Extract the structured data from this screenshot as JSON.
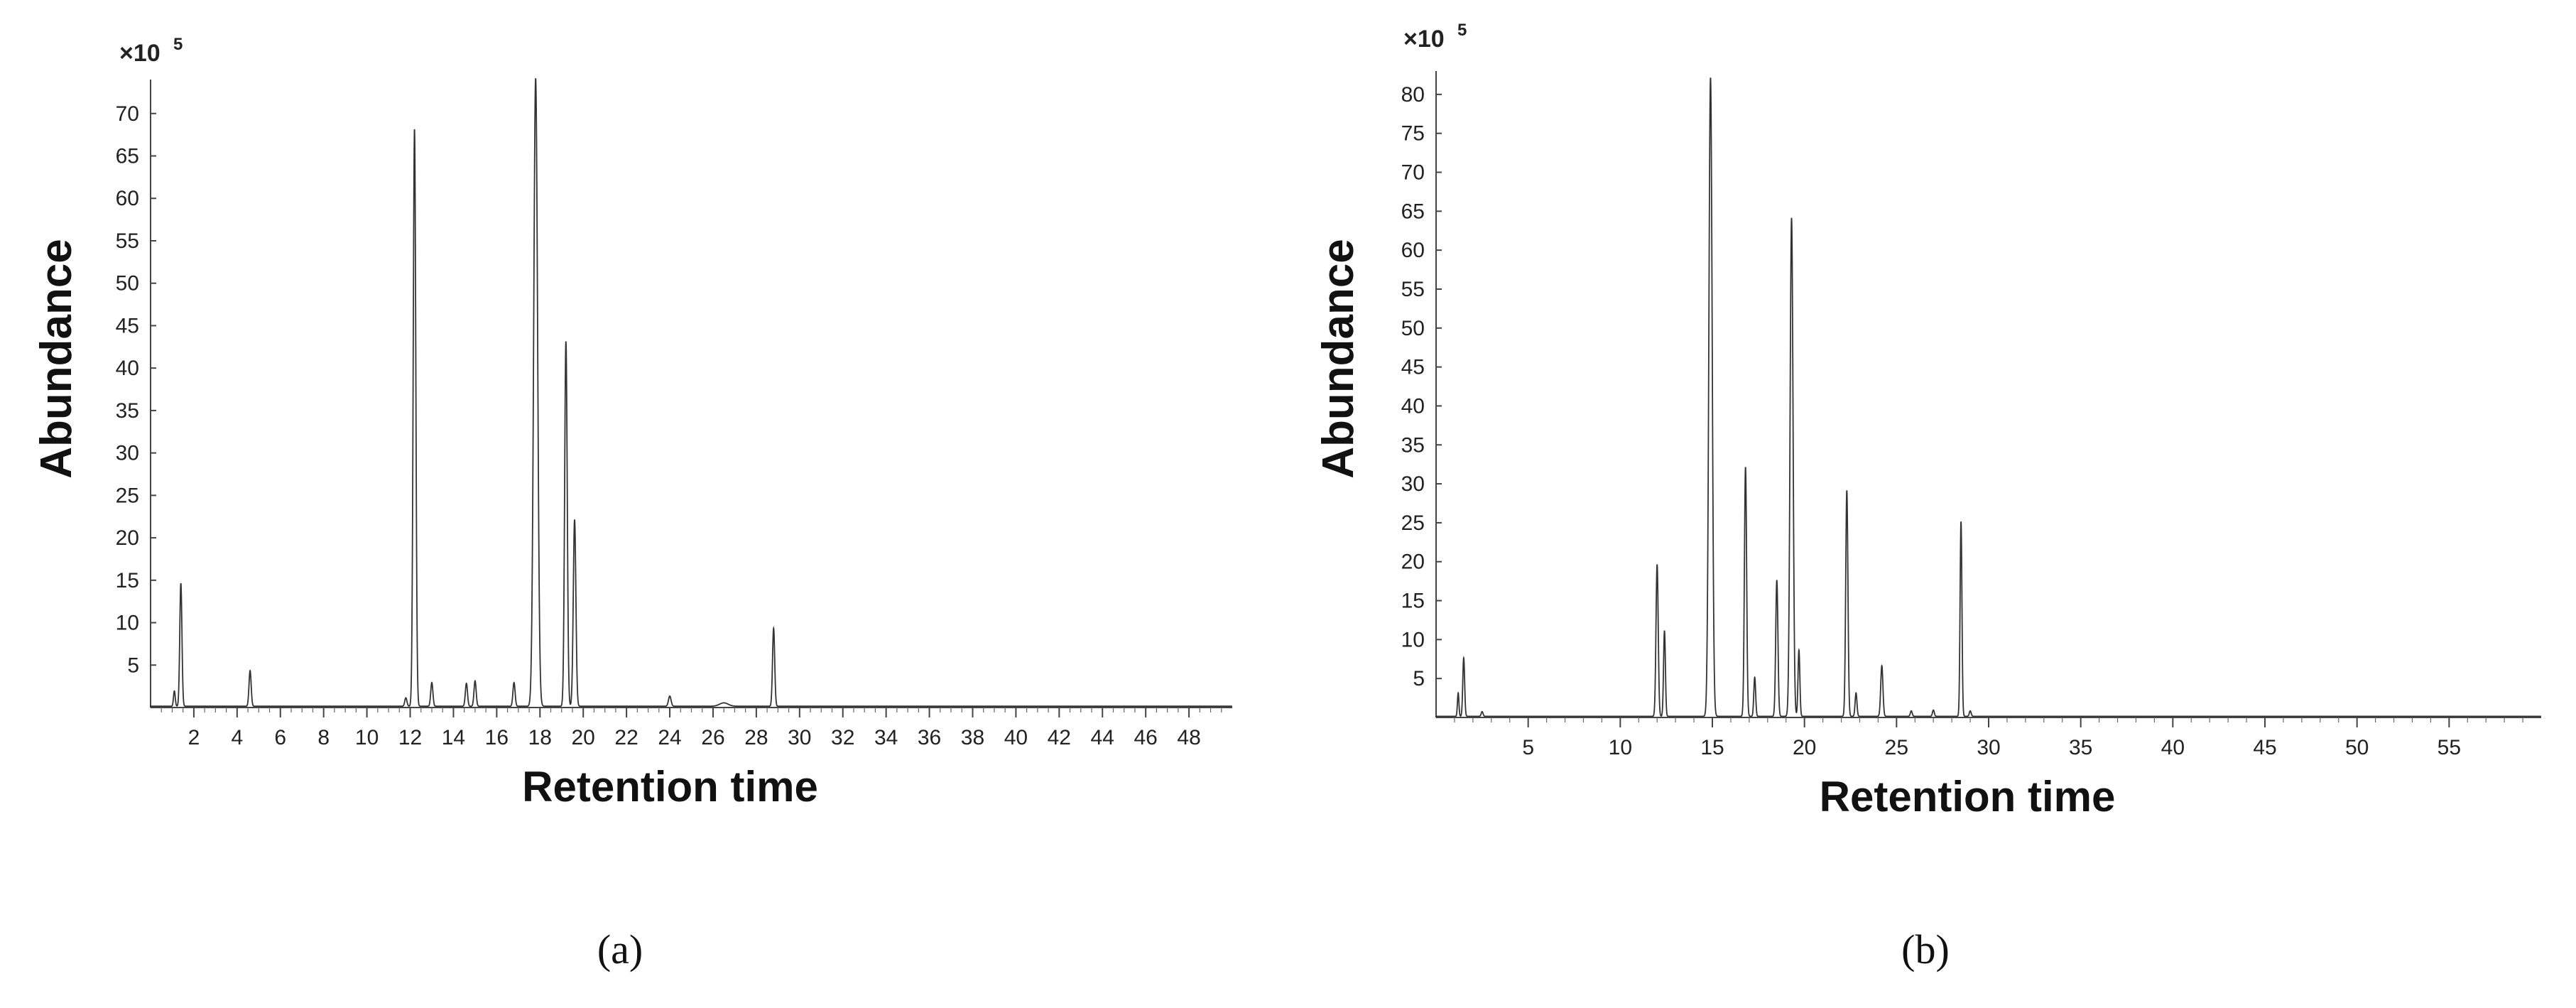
{
  "chart_data": [
    {
      "type": "line",
      "panel_label": "(a)",
      "multiplier": "×10",
      "multiplier_exp": "5",
      "xlabel": "Retention time",
      "ylabel": "Abundance",
      "xlim": [
        0,
        50
      ],
      "ylim": [
        0,
        74
      ],
      "xticks": [
        2,
        4,
        6,
        8,
        10,
        12,
        14,
        16,
        18,
        20,
        22,
        24,
        26,
        28,
        30,
        32,
        34,
        36,
        38,
        40,
        42,
        44,
        46,
        48
      ],
      "yticks": [
        5,
        10,
        15,
        20,
        25,
        30,
        35,
        40,
        45,
        50,
        55,
        60,
        65,
        70
      ],
      "color": "#333333",
      "peaks": [
        {
          "x": 1.1,
          "y": 1.8,
          "w": 0.04
        },
        {
          "x": 1.4,
          "y": 14.5,
          "w": 0.05
        },
        {
          "x": 4.6,
          "y": 4.2,
          "w": 0.05
        },
        {
          "x": 11.8,
          "y": 1.0,
          "w": 0.05
        },
        {
          "x": 12.2,
          "y": 68.0,
          "w": 0.06
        },
        {
          "x": 13.0,
          "y": 2.8,
          "w": 0.05
        },
        {
          "x": 14.6,
          "y": 2.7,
          "w": 0.05
        },
        {
          "x": 15.0,
          "y": 3.0,
          "w": 0.05
        },
        {
          "x": 16.8,
          "y": 2.8,
          "w": 0.05
        },
        {
          "x": 17.8,
          "y": 74.0,
          "w": 0.09
        },
        {
          "x": 19.2,
          "y": 43.0,
          "w": 0.06
        },
        {
          "x": 19.6,
          "y": 22.0,
          "w": 0.06
        },
        {
          "x": 24.0,
          "y": 1.2,
          "w": 0.06
        },
        {
          "x": 26.5,
          "y": 0.4,
          "w": 0.2
        },
        {
          "x": 28.8,
          "y": 9.2,
          "w": 0.05
        }
      ]
    },
    {
      "type": "line",
      "panel_label": "(b)",
      "multiplier": "×10",
      "multiplier_exp": "5",
      "xlabel": "Retention time",
      "ylabel": "Abundance",
      "xlim": [
        0,
        60
      ],
      "ylim": [
        0,
        83
      ],
      "xticks": [
        5,
        10,
        15,
        20,
        25,
        30,
        35,
        40,
        45,
        50,
        55
      ],
      "yticks": [
        5,
        10,
        15,
        20,
        25,
        30,
        35,
        40,
        45,
        50,
        55,
        60,
        65,
        70,
        75,
        80
      ],
      "color": "#333333",
      "peaks": [
        {
          "x": 1.2,
          "y": 3.0,
          "w": 0.04
        },
        {
          "x": 1.5,
          "y": 7.5,
          "w": 0.05
        },
        {
          "x": 2.5,
          "y": 0.6,
          "w": 0.05
        },
        {
          "x": 12.0,
          "y": 19.5,
          "w": 0.06
        },
        {
          "x": 12.4,
          "y": 11.0,
          "w": 0.05
        },
        {
          "x": 14.9,
          "y": 82.0,
          "w": 0.09
        },
        {
          "x": 16.8,
          "y": 32.0,
          "w": 0.06
        },
        {
          "x": 17.3,
          "y": 5.0,
          "w": 0.05
        },
        {
          "x": 18.5,
          "y": 17.5,
          "w": 0.06
        },
        {
          "x": 19.3,
          "y": 64.0,
          "w": 0.08
        },
        {
          "x": 19.7,
          "y": 8.5,
          "w": 0.05
        },
        {
          "x": 22.3,
          "y": 29.0,
          "w": 0.06
        },
        {
          "x": 22.8,
          "y": 3.0,
          "w": 0.05
        },
        {
          "x": 24.2,
          "y": 6.5,
          "w": 0.06
        },
        {
          "x": 25.8,
          "y": 0.7,
          "w": 0.05
        },
        {
          "x": 27.0,
          "y": 0.8,
          "w": 0.05
        },
        {
          "x": 28.5,
          "y": 25.0,
          "w": 0.05
        },
        {
          "x": 29.0,
          "y": 0.7,
          "w": 0.05
        }
      ]
    }
  ]
}
